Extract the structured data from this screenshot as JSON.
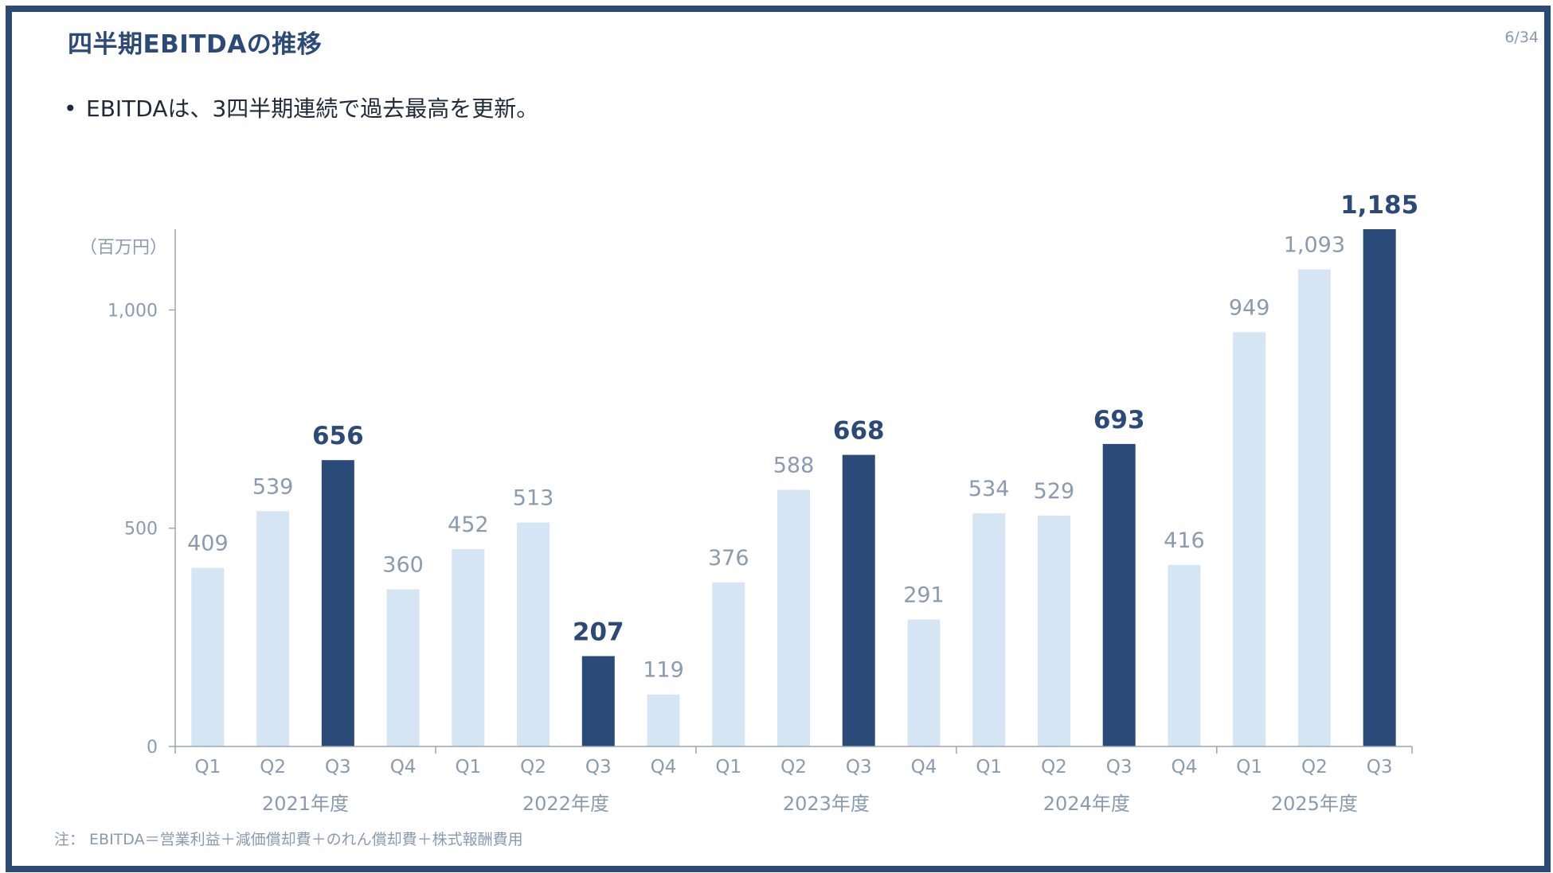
{
  "header": {
    "title": "四半期EBITDAの推移",
    "page_number": "6/34"
  },
  "bullet": {
    "marker": "•",
    "text": "EBITDAは、3四半期連続で過去最高を更新。"
  },
  "note": "注： EBITDA＝営業利益＋減価償却費＋のれん償却費＋株式報酬費用",
  "colors": {
    "frame": "#2b4a78",
    "highlight_bar": "#2b4a78",
    "normal_bar": "#d6e5f4",
    "axis": "#9aa7b6",
    "muted_text": "#8a9bb0"
  },
  "chart_data": {
    "type": "bar",
    "unit_label": "（百万円）",
    "ylim": [
      0,
      1185
    ],
    "yticks": [
      {
        "value": 0,
        "label": "0"
      },
      {
        "value": 500,
        "label": "500"
      },
      {
        "value": 1000,
        "label": "1,000"
      }
    ],
    "grid": false,
    "categories": [
      "Q1",
      "Q2",
      "Q3",
      "Q4",
      "Q1",
      "Q2",
      "Q3",
      "Q4",
      "Q1",
      "Q2",
      "Q3",
      "Q4",
      "Q1",
      "Q2",
      "Q3",
      "Q4",
      "Q1",
      "Q2",
      "Q3"
    ],
    "values": [
      409,
      539,
      656,
      360,
      452,
      513,
      207,
      119,
      376,
      588,
      668,
      291,
      534,
      529,
      693,
      416,
      949,
      1093,
      1185
    ],
    "value_labels": [
      "409",
      "539",
      "656",
      "360",
      "452",
      "513",
      "207",
      "119",
      "376",
      "588",
      "668",
      "291",
      "534",
      "529",
      "693",
      "416",
      "949",
      "1,093",
      "1,185"
    ],
    "highlighted": [
      false,
      false,
      true,
      false,
      false,
      false,
      true,
      false,
      false,
      false,
      true,
      false,
      false,
      false,
      true,
      false,
      false,
      false,
      true
    ],
    "groups": [
      {
        "label": "2021年度",
        "start": 0,
        "count": 4
      },
      {
        "label": "2022年度",
        "start": 4,
        "count": 4
      },
      {
        "label": "2023年度",
        "start": 8,
        "count": 4
      },
      {
        "label": "2024年度",
        "start": 12,
        "count": 4
      },
      {
        "label": "2025年度",
        "start": 16,
        "count": 3
      }
    ]
  }
}
